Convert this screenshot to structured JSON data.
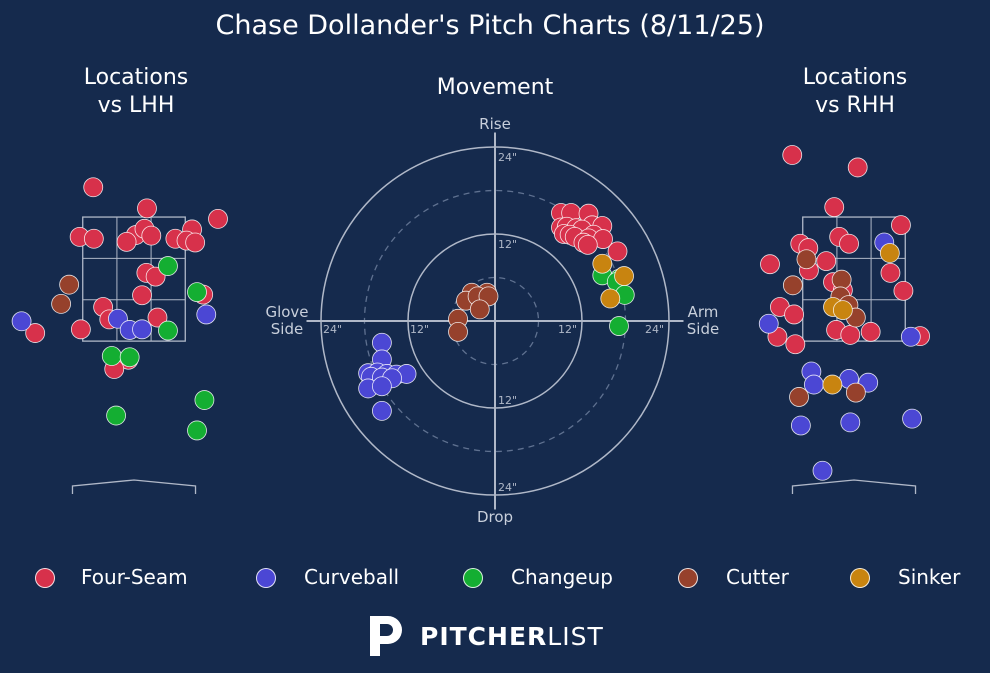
{
  "title": "Chase Dollander's Pitch Charts (8/11/25)",
  "panels": {
    "lhh_title": "Locations\nvs LHH",
    "movement_title": "Movement",
    "rhh_title": "Locations\nvs RHH"
  },
  "movement_labels": {
    "top": "Rise",
    "bottom": "Drop",
    "left": "Glove\nSide",
    "right": "Arm\nSide",
    "ring_labels": [
      "12\"",
      "24\""
    ]
  },
  "pitch_colors": {
    "Four-Seam": "#d7314b",
    "Curveball": "#4b47d4",
    "Changeup": "#14ae32",
    "Cutter": "#96412c",
    "Sinker": "#c88410"
  },
  "legend": [
    "Four-Seam",
    "Curveball",
    "Changeup",
    "Cutter",
    "Sinker"
  ],
  "brand": {
    "strong": "PITCHER",
    "light": "LIST"
  },
  "chart_data": [
    {
      "type": "scatter",
      "title": "Locations vs LHH",
      "xlim": [
        -1.7,
        1.7
      ],
      "ylim": [
        -0.9,
        5.0
      ],
      "strike_zone": {
        "x": [
          -0.83,
          0.83
        ],
        "y": [
          1.5,
          3.5
        ]
      },
      "points": [
        {
          "pitch": "Four-Seam",
          "x": -0.66,
          "y": 3.98
        },
        {
          "pitch": "Four-Seam",
          "x": 0.21,
          "y": 3.64
        },
        {
          "pitch": "Four-Seam",
          "x": 1.36,
          "y": 3.47
        },
        {
          "pitch": "Four-Seam",
          "x": -0.88,
          "y": 3.18
        },
        {
          "pitch": "Four-Seam",
          "x": -0.65,
          "y": 3.15
        },
        {
          "pitch": "Four-Seam",
          "x": 0.03,
          "y": 3.21
        },
        {
          "pitch": "Four-Seam",
          "x": 0.17,
          "y": 3.31
        },
        {
          "pitch": "Four-Seam",
          "x": 0.28,
          "y": 3.2
        },
        {
          "pitch": "Four-Seam",
          "x": 0.94,
          "y": 3.3
        },
        {
          "pitch": "Four-Seam",
          "x": 0.67,
          "y": 3.15
        },
        {
          "pitch": "Four-Seam",
          "x": 0.85,
          "y": 3.12
        },
        {
          "pitch": "Four-Seam",
          "x": -0.12,
          "y": 3.1
        },
        {
          "pitch": "Four-Seam",
          "x": 0.99,
          "y": 3.09
        },
        {
          "pitch": "Four-Seam",
          "x": 0.2,
          "y": 2.6
        },
        {
          "pitch": "Four-Seam",
          "x": 0.35,
          "y": 2.54
        },
        {
          "pitch": "Four-Seam",
          "x": 0.13,
          "y": 2.24
        },
        {
          "pitch": "Four-Seam",
          "x": 1.12,
          "y": 2.25
        },
        {
          "pitch": "Four-Seam",
          "x": -0.5,
          "y": 2.05
        },
        {
          "pitch": "Four-Seam",
          "x": -0.4,
          "y": 1.85
        },
        {
          "pitch": "Four-Seam",
          "x": 0.38,
          "y": 1.88
        },
        {
          "pitch": "Four-Seam",
          "x": -0.86,
          "y": 1.69
        },
        {
          "pitch": "Four-Seam",
          "x": -1.6,
          "y": 1.63
        },
        {
          "pitch": "Four-Seam",
          "x": -0.09,
          "y": 1.2
        },
        {
          "pitch": "Four-Seam",
          "x": -0.32,
          "y": 1.05
        },
        {
          "pitch": "Curveball",
          "x": -1.82,
          "y": 1.82
        },
        {
          "pitch": "Curveball",
          "x": -0.26,
          "y": 1.86
        },
        {
          "pitch": "Curveball",
          "x": 1.17,
          "y": 1.93
        },
        {
          "pitch": "Curveball",
          "x": -0.07,
          "y": 1.68
        },
        {
          "pitch": "Curveball",
          "x": 0.13,
          "y": 1.69
        },
        {
          "pitch": "Changeup",
          "x": 0.55,
          "y": 2.71
        },
        {
          "pitch": "Changeup",
          "x": 1.02,
          "y": 2.29
        },
        {
          "pitch": "Changeup",
          "x": 0.55,
          "y": 1.67
        },
        {
          "pitch": "Changeup",
          "x": -0.36,
          "y": 1.26
        },
        {
          "pitch": "Changeup",
          "x": -0.07,
          "y": 1.24
        },
        {
          "pitch": "Changeup",
          "x": 1.14,
          "y": 0.55
        },
        {
          "pitch": "Changeup",
          "x": -0.29,
          "y": 0.3
        },
        {
          "pitch": "Changeup",
          "x": 1.02,
          "y": 0.06
        },
        {
          "pitch": "Cutter",
          "x": -1.05,
          "y": 2.41
        },
        {
          "pitch": "Cutter",
          "x": -1.18,
          "y": 2.1
        }
      ]
    },
    {
      "type": "scatter",
      "title": "Movement",
      "xlabel": "",
      "ylabel": "",
      "xlim": [
        -26,
        26
      ],
      "ylim": [
        -26,
        26
      ],
      "rings": [
        6,
        12,
        18,
        24
      ],
      "points": [
        {
          "pitch": "Four-Seam",
          "x": 9.1,
          "y": 14.9
        },
        {
          "pitch": "Four-Seam",
          "x": 10.5,
          "y": 14.9
        },
        {
          "pitch": "Four-Seam",
          "x": 12.9,
          "y": 14.8
        },
        {
          "pitch": "Four-Seam",
          "x": 13.4,
          "y": 13.2
        },
        {
          "pitch": "Four-Seam",
          "x": 14.8,
          "y": 13.1
        },
        {
          "pitch": "Four-Seam",
          "x": 9.1,
          "y": 12.9
        },
        {
          "pitch": "Four-Seam",
          "x": 9.9,
          "y": 13.0
        },
        {
          "pitch": "Four-Seam",
          "x": 11.2,
          "y": 12.8
        },
        {
          "pitch": "Four-Seam",
          "x": 12.0,
          "y": 12.6
        },
        {
          "pitch": "Four-Seam",
          "x": 13.6,
          "y": 11.9
        },
        {
          "pitch": "Four-Seam",
          "x": 9.5,
          "y": 12.0
        },
        {
          "pitch": "Four-Seam",
          "x": 10.3,
          "y": 11.9
        },
        {
          "pitch": "Four-Seam",
          "x": 11.0,
          "y": 11.6
        },
        {
          "pitch": "Four-Seam",
          "x": 12.9,
          "y": 11.4
        },
        {
          "pitch": "Four-Seam",
          "x": 14.9,
          "y": 11.3
        },
        {
          "pitch": "Four-Seam",
          "x": 12.2,
          "y": 10.8
        },
        {
          "pitch": "Four-Seam",
          "x": 12.8,
          "y": 10.5
        },
        {
          "pitch": "Four-Seam",
          "x": 16.9,
          "y": 9.6
        },
        {
          "pitch": "Curveball",
          "x": -15.6,
          "y": -3.0
        },
        {
          "pitch": "Curveball",
          "x": -15.6,
          "y": -5.3
        },
        {
          "pitch": "Curveball",
          "x": -17.5,
          "y": -7.2
        },
        {
          "pitch": "Curveball",
          "x": -16.2,
          "y": -7.1
        },
        {
          "pitch": "Curveball",
          "x": -14.9,
          "y": -7.3
        },
        {
          "pitch": "Curveball",
          "x": -13.6,
          "y": -7.4
        },
        {
          "pitch": "Curveball",
          "x": -12.2,
          "y": -7.3
        },
        {
          "pitch": "Curveball",
          "x": -17.1,
          "y": -7.7
        },
        {
          "pitch": "Curveball",
          "x": -15.6,
          "y": -7.8
        },
        {
          "pitch": "Curveball",
          "x": -14.2,
          "y": -7.9
        },
        {
          "pitch": "Curveball",
          "x": -17.5,
          "y": -9.3
        },
        {
          "pitch": "Curveball",
          "x": -15.6,
          "y": -9.0
        },
        {
          "pitch": "Curveball",
          "x": -15.6,
          "y": -12.4
        },
        {
          "pitch": "Changeup",
          "x": 14.8,
          "y": 6.3
        },
        {
          "pitch": "Changeup",
          "x": 17.1,
          "y": 5.8
        },
        {
          "pitch": "Changeup",
          "x": 16.8,
          "y": 5.4
        },
        {
          "pitch": "Changeup",
          "x": 17.9,
          "y": 3.6
        },
        {
          "pitch": "Changeup",
          "x": 17.1,
          "y": -0.7
        },
        {
          "pitch": "Cutter",
          "x": -3.2,
          "y": 3.9
        },
        {
          "pitch": "Cutter",
          "x": -1.1,
          "y": 3.9
        },
        {
          "pitch": "Cutter",
          "x": -4.0,
          "y": 2.8
        },
        {
          "pitch": "Cutter",
          "x": -2.4,
          "y": 3.4
        },
        {
          "pitch": "Cutter",
          "x": -0.9,
          "y": 3.4
        },
        {
          "pitch": "Cutter",
          "x": -2.1,
          "y": 1.6
        },
        {
          "pitch": "Cutter",
          "x": -5.1,
          "y": 0.3
        },
        {
          "pitch": "Cutter",
          "x": -5.1,
          "y": -1.5
        },
        {
          "pitch": "Sinker",
          "x": 14.8,
          "y": 7.9
        },
        {
          "pitch": "Sinker",
          "x": 17.8,
          "y": 6.2
        },
        {
          "pitch": "Sinker",
          "x": 15.9,
          "y": 3.1
        }
      ]
    },
    {
      "type": "scatter",
      "title": "Locations vs RHH",
      "xlim": [
        -1.7,
        1.7
      ],
      "ylim": [
        -0.9,
        5.0
      ],
      "strike_zone": {
        "x": [
          -0.83,
          0.83
        ],
        "y": [
          1.5,
          3.5
        ]
      },
      "points": [
        {
          "pitch": "Four-Seam",
          "x": -1.0,
          "y": 4.5
        },
        {
          "pitch": "Four-Seam",
          "x": 0.06,
          "y": 4.3
        },
        {
          "pitch": "Four-Seam",
          "x": -0.32,
          "y": 3.66
        },
        {
          "pitch": "Four-Seam",
          "x": 0.76,
          "y": 3.37
        },
        {
          "pitch": "Four-Seam",
          "x": -0.24,
          "y": 3.18
        },
        {
          "pitch": "Four-Seam",
          "x": -0.08,
          "y": 3.07
        },
        {
          "pitch": "Four-Seam",
          "x": -0.87,
          "y": 3.07
        },
        {
          "pitch": "Four-Seam",
          "x": -0.74,
          "y": 3.0
        },
        {
          "pitch": "Four-Seam",
          "x": -0.45,
          "y": 2.79
        },
        {
          "pitch": "Four-Seam",
          "x": -1.36,
          "y": 2.74
        },
        {
          "pitch": "Four-Seam",
          "x": -0.73,
          "y": 2.64
        },
        {
          "pitch": "Four-Seam",
          "x": 0.59,
          "y": 2.6
        },
        {
          "pitch": "Four-Seam",
          "x": -0.34,
          "y": 2.45
        },
        {
          "pitch": "Four-Seam",
          "x": -0.18,
          "y": 2.32
        },
        {
          "pitch": "Four-Seam",
          "x": 0.8,
          "y": 2.31
        },
        {
          "pitch": "Four-Seam",
          "x": -0.22,
          "y": 2.2
        },
        {
          "pitch": "Four-Seam",
          "x": -1.2,
          "y": 2.05
        },
        {
          "pitch": "Four-Seam",
          "x": -0.97,
          "y": 1.93
        },
        {
          "pitch": "Four-Seam",
          "x": -0.29,
          "y": 1.68
        },
        {
          "pitch": "Four-Seam",
          "x": -0.06,
          "y": 1.6
        },
        {
          "pitch": "Four-Seam",
          "x": 0.27,
          "y": 1.65
        },
        {
          "pitch": "Four-Seam",
          "x": -1.24,
          "y": 1.57
        },
        {
          "pitch": "Four-Seam",
          "x": -0.95,
          "y": 1.45
        },
        {
          "pitch": "Four-Seam",
          "x": 1.07,
          "y": 1.58
        },
        {
          "pitch": "Curveball",
          "x": 0.49,
          "y": 3.09
        },
        {
          "pitch": "Curveball",
          "x": -1.38,
          "y": 1.78
        },
        {
          "pitch": "Curveball",
          "x": 0.92,
          "y": 1.57
        },
        {
          "pitch": "Curveball",
          "x": -0.69,
          "y": 1.01
        },
        {
          "pitch": "Curveball",
          "x": -0.65,
          "y": 0.8
        },
        {
          "pitch": "Curveball",
          "x": -0.08,
          "y": 0.89
        },
        {
          "pitch": "Curveball",
          "x": 0.23,
          "y": 0.83
        },
        {
          "pitch": "Curveball",
          "x": -0.86,
          "y": 0.14
        },
        {
          "pitch": "Curveball",
          "x": -0.06,
          "y": 0.19
        },
        {
          "pitch": "Curveball",
          "x": 0.94,
          "y": 0.25
        },
        {
          "pitch": "Curveball",
          "x": -0.51,
          "y": -0.59
        },
        {
          "pitch": "Cutter",
          "x": -0.77,
          "y": 2.82
        },
        {
          "pitch": "Cutter",
          "x": -0.99,
          "y": 2.4
        },
        {
          "pitch": "Cutter",
          "x": -0.2,
          "y": 2.49
        },
        {
          "pitch": "Cutter",
          "x": -0.22,
          "y": 2.22
        },
        {
          "pitch": "Cutter",
          "x": -0.09,
          "y": 2.08
        },
        {
          "pitch": "Cutter",
          "x": 0.03,
          "y": 1.88
        },
        {
          "pitch": "Cutter",
          "x": -0.89,
          "y": 0.6
        },
        {
          "pitch": "Cutter",
          "x": 0.03,
          "y": 0.67
        },
        {
          "pitch": "Sinker",
          "x": 0.58,
          "y": 2.92
        },
        {
          "pitch": "Sinker",
          "x": -0.34,
          "y": 2.05
        },
        {
          "pitch": "Sinker",
          "x": -0.18,
          "y": 2.0
        },
        {
          "pitch": "Sinker",
          "x": -0.35,
          "y": 0.8
        }
      ]
    }
  ]
}
